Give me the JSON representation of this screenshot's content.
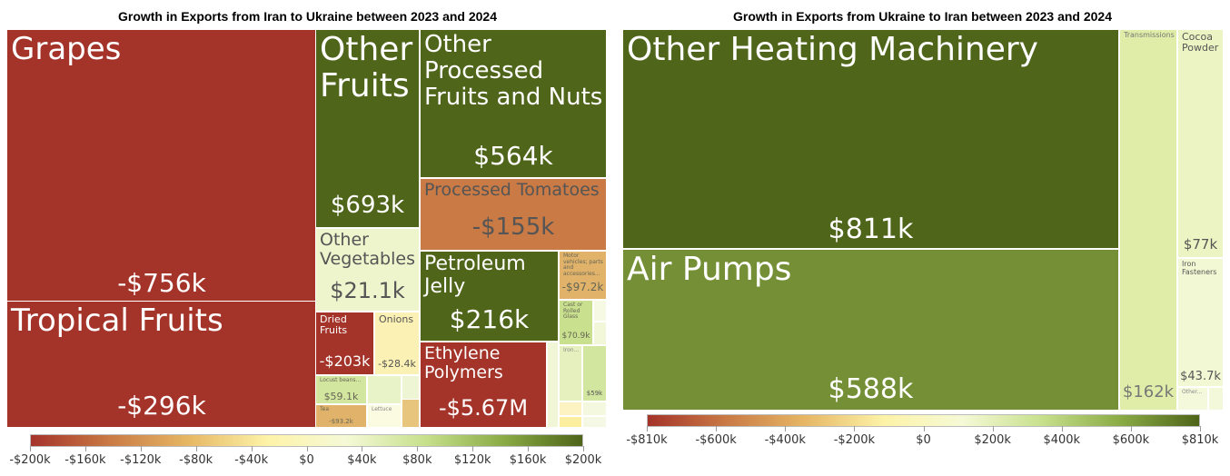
{
  "chart_data": [
    {
      "type": "treemap",
      "title": "Growth in Exports from Iran to Ukraine between 2023 and 2024",
      "color_scale": {
        "min": -200000,
        "max": 200000,
        "ticks": [
          "-$200k",
          "-$160k",
          "-$120k",
          "-$80k",
          "-$40k",
          "$0",
          "$40k",
          "$80k",
          "$120k",
          "$160k",
          "$200k"
        ],
        "colors": [
          "#a4332a",
          "#c97a45",
          "#e6b765",
          "#fdf3a8",
          "#f5f9d6",
          "#c7e08d",
          "#8aab45",
          "#4e6419"
        ]
      },
      "tiles": [
        {
          "id": "grapes",
          "label": "Grapes",
          "value": "-$756k",
          "color": "#a4342a"
        },
        {
          "id": "tropical-fruits",
          "label": "Tropical Fruits",
          "value": "-$296k",
          "color": "#a4342a"
        },
        {
          "id": "other-fruits",
          "label": "Other Fruits",
          "value": "$693k",
          "color": "#4f651a"
        },
        {
          "id": "other-processed-fruits-nuts",
          "label": "Other Processed Fruits and Nuts",
          "value": "$564k",
          "color": "#4f651a"
        },
        {
          "id": "processed-tomatoes",
          "label": "Processed Tomatoes",
          "value": "-$155k",
          "color": "#c97a45"
        },
        {
          "id": "other-vegetables",
          "label": "Other Vegetables",
          "value": "$21.1k",
          "color": "#eef5cc"
        },
        {
          "id": "petroleum-jelly",
          "label": "Petroleum Jelly",
          "value": "$216k",
          "color": "#4f651a"
        },
        {
          "id": "motor-vehicles-parts",
          "label": "Motor vehicles; parts and accessories...",
          "value": "-$97.2k",
          "color": "#e0b26a"
        },
        {
          "id": "cast-rolled-glass",
          "label": "Cast or Rolled Glass",
          "value": "$70.9k",
          "color": "#c9e08e"
        },
        {
          "id": "dried-fruits",
          "label": "Dried Fruits",
          "value": "-$203k",
          "color": "#a4342a"
        },
        {
          "id": "onions",
          "label": "Onions",
          "value": "-$28.4k",
          "color": "#fcf1b4"
        },
        {
          "id": "ethylene-polymers",
          "label": "Ethylene Polymers",
          "value": "-$5.67M",
          "color": "#a4342a"
        },
        {
          "id": "iron",
          "label": "Iron...",
          "value": "",
          "color": "#e5f0be"
        },
        {
          "id": "unlabeled-59k",
          "label": "",
          "value": "$59k",
          "color": "#d3e69f"
        },
        {
          "id": "locust-beans",
          "label": "Locust beans...",
          "value": "$59.1k",
          "color": "#d3e69f"
        },
        {
          "id": "tea",
          "label": "Tea",
          "value": "-$93.2k",
          "color": "#e0b26a"
        },
        {
          "id": "lettuce",
          "label": "Lettuce",
          "value": "",
          "color": "#fafbe0"
        }
      ]
    },
    {
      "type": "treemap",
      "title": "Growth in Exports from Ukraine to Iran between 2023 and 2024",
      "color_scale": {
        "min": -810000,
        "max": 810000,
        "ticks": [
          "-$810k",
          "-$600k",
          "-$400k",
          "-$200k",
          "$0",
          "$200k",
          "$400k",
          "$600k",
          "$810k"
        ],
        "colors": [
          "#a4332a",
          "#c97a45",
          "#e6b765",
          "#fdf3a8",
          "#f5f9d6",
          "#c7e08d",
          "#8aab45",
          "#4e6419"
        ]
      },
      "tiles": [
        {
          "id": "other-heating-machinery",
          "label": "Other Heating Machinery",
          "value": "$811k",
          "color": "#4f651a"
        },
        {
          "id": "air-pumps",
          "label": "Air Pumps",
          "value": "$588k",
          "color": "#748f35"
        },
        {
          "id": "transmissions",
          "label": "Transmissions",
          "value": "$162k",
          "color": "#e0eda8"
        },
        {
          "id": "cocoa-powder",
          "label": "Cocoa Powder",
          "value": "$77k",
          "color": "#ebf4c2"
        },
        {
          "id": "iron-fasteners",
          "label": "Iron Fasteners",
          "value": "$43.7k",
          "color": "#f2f8d3"
        },
        {
          "id": "other",
          "label": "Other...",
          "value": "",
          "color": "#f5f9dc"
        }
      ]
    }
  ]
}
